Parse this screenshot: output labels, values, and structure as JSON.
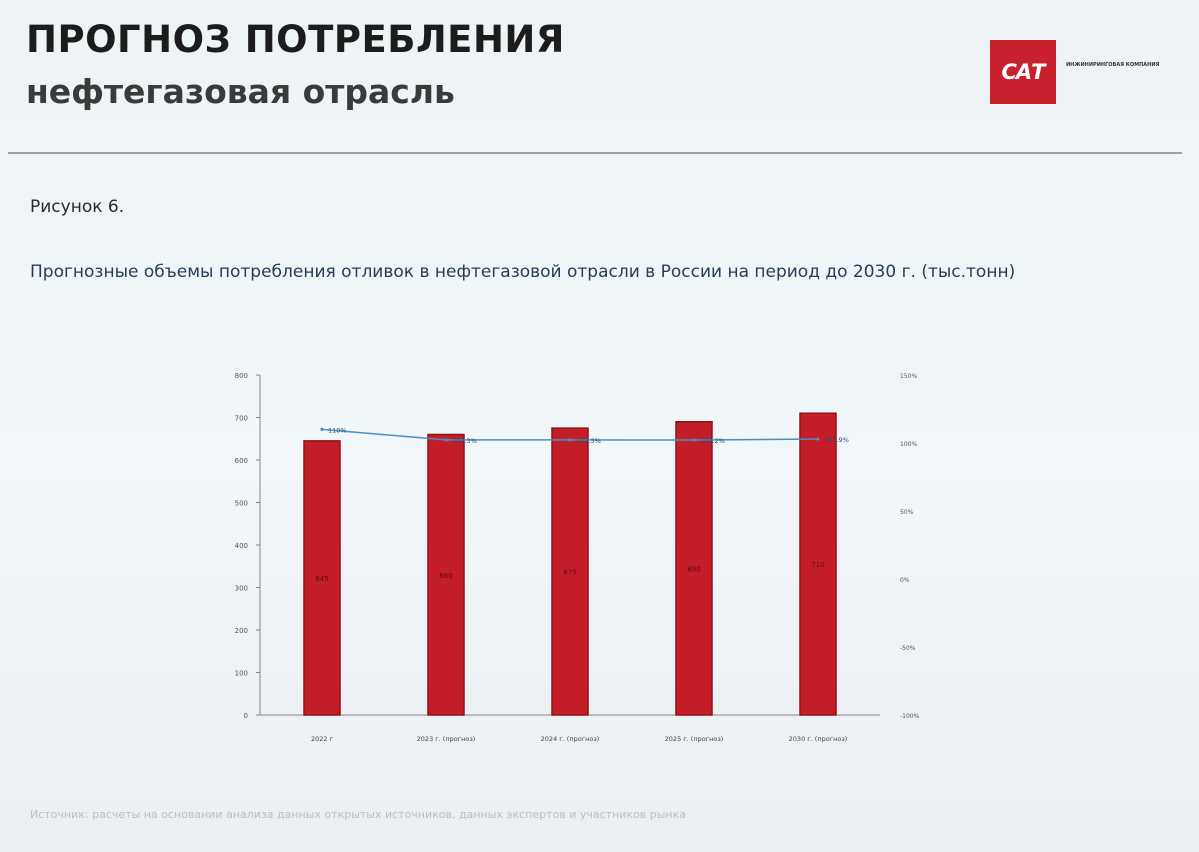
{
  "header": {
    "title": "ПРОГНОЗ ПОТРЕБЛЕНИЯ",
    "subtitle": "нефтегазовая отрасль",
    "logo_mark": "САТ",
    "logo_text": "ИНЖИНИРИНГОВАЯ КОМПАНИЯ"
  },
  "figure_label": "Рисунок 6.",
  "chart_caption": "Прогнозные объемы потребления отливок в нефтегазовой отрасли в России на период до 2030 г. (тыс.тонн)",
  "source": "Источник: расчеты на основании анализа данных открытых источников, данных экспертов и участников рынка",
  "colors": {
    "bar": "#c41e28",
    "bar_edge": "#8e1219",
    "line": "#4a8fc4",
    "axis": "#888888"
  },
  "chart_data": {
    "type": "bar",
    "title": "",
    "categories": [
      "2022 г",
      "2023 г. (прогноз)",
      "2024 г. (прогноз)",
      "2025 г. (прогноз)",
      "2030 г. (прогноз)"
    ],
    "series": [
      {
        "values": [
          645,
          660,
          675,
          690,
          710
        ],
        "data_labels": [
          "645",
          "660",
          "675",
          "690",
          "710"
        ]
      },
      {
        "axis": "right",
        "type": "line",
        "values": [
          110,
          102.3,
          102.3,
          102.2,
          102.9
        ],
        "data_labels": [
          "110%",
          "102.3%",
          "102.3%",
          "102.2%",
          "102.9%"
        ]
      }
    ],
    "y_ticks": [
      "0",
      "100",
      "200",
      "300",
      "400",
      "500",
      "600",
      "700",
      "800"
    ],
    "ylim": [
      0,
      800
    ],
    "y2_ticks": [
      "-100%",
      "-50%",
      "0%",
      "50%",
      "100%",
      "150%"
    ],
    "y2lim": [
      -100,
      150
    ],
    "legend": "none",
    "grid": false
  }
}
